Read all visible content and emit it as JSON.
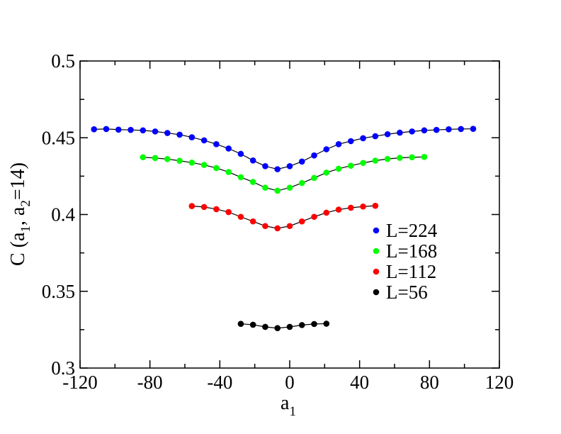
{
  "chart_data": {
    "type": "scatter",
    "xlabel_main": "a",
    "xlabel_sub": "1",
    "ylabel_parts": {
      "prefix": "C (a",
      "sub1": "1",
      "middle": ", a",
      "sub2": "2",
      "suffix": "=14)"
    },
    "xlim": [
      -120,
      120
    ],
    "ylim": [
      0.3,
      0.5
    ],
    "x_ticks": [
      -120,
      -80,
      -40,
      0,
      40,
      80,
      120
    ],
    "x_tick_labels": [
      "-120",
      "-80",
      "-40",
      "0",
      "40",
      "80",
      "120"
    ],
    "y_ticks": [
      0.3,
      0.35,
      0.4,
      0.45,
      0.5
    ],
    "y_tick_labels": [
      "0.3",
      "0.35",
      "0.4",
      "0.45",
      "0.5"
    ],
    "grid": false,
    "legend_position": "right-middle",
    "series": [
      {
        "name": "L=224",
        "color": "#0000ff",
        "x": [
          -112,
          -105,
          -98,
          -91,
          -84,
          -77,
          -70,
          -63,
          -56,
          -49,
          -42,
          -35,
          -28,
          -21,
          -14,
          -7,
          0,
          7,
          14,
          21,
          28,
          35,
          42,
          49,
          56,
          63,
          70,
          77,
          84,
          91,
          98,
          105
        ],
        "y": [
          0.4555,
          0.4557,
          0.4553,
          0.4551,
          0.4548,
          0.4541,
          0.4531,
          0.452,
          0.4503,
          0.4483,
          0.4458,
          0.443,
          0.4395,
          0.4352,
          0.4315,
          0.4295,
          0.4315,
          0.4345,
          0.4385,
          0.4425,
          0.4458,
          0.4478,
          0.4497,
          0.451,
          0.4523,
          0.4533,
          0.4541,
          0.4548,
          0.4551,
          0.4555,
          0.4557,
          0.4558
        ]
      },
      {
        "name": "L=168",
        "color": "#00ff00",
        "x": [
          -84,
          -77,
          -70,
          -63,
          -56,
          -49,
          -42,
          -35,
          -28,
          -21,
          -14,
          -7,
          0,
          7,
          14,
          21,
          28,
          35,
          42,
          49,
          56,
          63,
          70,
          77
        ],
        "y": [
          0.4373,
          0.4368,
          0.4361,
          0.435,
          0.4338,
          0.4323,
          0.4303,
          0.4277,
          0.4243,
          0.4212,
          0.4175,
          0.4155,
          0.4175,
          0.4205,
          0.4238,
          0.4273,
          0.4298,
          0.4318,
          0.4336,
          0.4351,
          0.4362,
          0.4369,
          0.4373,
          0.4375
        ]
      },
      {
        "name": "L=112",
        "color": "#ff0000",
        "x": [
          -56,
          -49,
          -42,
          -35,
          -28,
          -21,
          -14,
          -7,
          0,
          7,
          14,
          21,
          28,
          35,
          42,
          49
        ],
        "y": [
          0.4055,
          0.4049,
          0.4035,
          0.4016,
          0.3985,
          0.3955,
          0.3925,
          0.391,
          0.3925,
          0.3955,
          0.3985,
          0.4012,
          0.4032,
          0.4044,
          0.4052,
          0.4057
        ]
      },
      {
        "name": "L=56",
        "color": "#000000",
        "x": [
          -28,
          -21,
          -14,
          -7,
          0,
          7,
          14,
          21
        ],
        "y": [
          0.3288,
          0.3282,
          0.3268,
          0.326,
          0.3268,
          0.328,
          0.3287,
          0.3289
        ]
      }
    ]
  }
}
